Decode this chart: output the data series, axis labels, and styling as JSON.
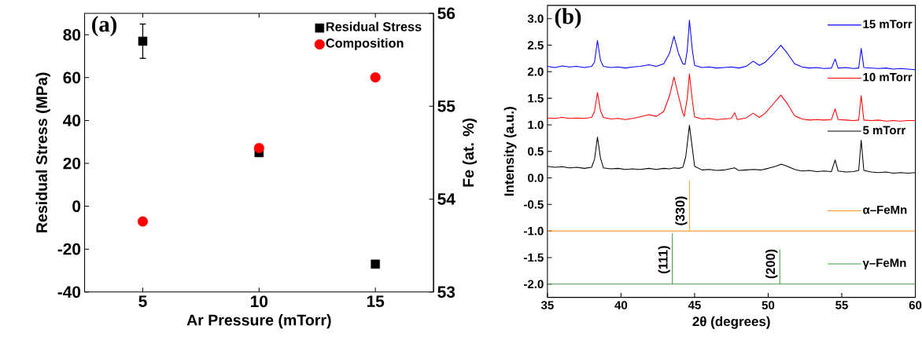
{
  "chart_data": [
    {
      "type": "scatter",
      "x": [
        5,
        10,
        15
      ],
      "xlim": [
        2.5,
        17.5
      ],
      "xticks": [
        5,
        10,
        15
      ],
      "ylim": [
        -40,
        90
      ],
      "yticks": [
        -40,
        -20,
        0,
        20,
        40,
        60,
        80
      ],
      "y2lim": [
        53,
        56
      ],
      "y2ticks": [
        53,
        54,
        55,
        56
      ],
      "xlabel": "Ar Pressure (mTorr)",
      "ylabel": "Residual Stress (MPa)",
      "y2label": "Fe (at. %)",
      "annotations": [
        "(a)"
      ],
      "legend": "top right",
      "series": [
        {
          "name": "Residual Stress",
          "color": "#000000",
          "marker": "square",
          "values": [
            77,
            25,
            -27
          ],
          "errors": [
            8,
            null,
            null
          ]
        },
        {
          "name": "Composition",
          "color": "#ff0000",
          "marker": "circle",
          "axis": "y2",
          "values": [
            53.76,
            54.55,
            55.31
          ]
        }
      ]
    },
    {
      "type": "line",
      "xlim": [
        35,
        60
      ],
      "xticks": [
        35,
        40,
        45,
        50,
        55,
        60
      ],
      "ylim": [
        -2.25,
        3.25
      ],
      "yticks": [
        {
          "value": -2,
          "label": "-2.0"
        },
        {
          "value": -1.5,
          "label": "-1.5"
        },
        {
          "value": -1,
          "label": "-1.0"
        },
        {
          "value": -0.5,
          "label": "-0.5"
        },
        {
          "value": 0,
          "label": "0.0"
        },
        {
          "value": 0.5,
          "label": "0.5"
        },
        {
          "value": 1,
          "label": "1.0"
        },
        {
          "value": 1.5,
          "label": "1.5"
        },
        {
          "value": 2,
          "label": "2.0"
        },
        {
          "value": 2.5,
          "label": "2.5"
        },
        {
          "value": 3,
          "label": "3.0"
        }
      ],
      "xlabel": "2θ (degrees)",
      "ylabel": "Intensity (a.u.)",
      "legend": "right",
      "annotations": [
        "(b)",
        {
          "text": "(330)",
          "x": 44.65,
          "y": -0.62
        },
        {
          "text": "(111)",
          "x": 43.49,
          "y": -1.54
        },
        {
          "text": "(200)",
          "x": 50.79,
          "y": -1.62
        }
      ],
      "series": [
        {
          "name": "15 mTorr",
          "color": "#0000ff",
          "x": [
            35,
            35.5,
            36,
            36.5,
            37,
            37.5,
            38,
            38.2,
            38.4,
            38.6,
            38.8,
            39.3,
            39.8,
            40.3,
            40.8,
            41.3,
            41.9,
            42.4,
            42.9,
            43.3,
            43.6,
            43.9,
            44.2,
            44.35,
            44.5,
            44.65,
            44.85,
            45,
            45.5,
            46,
            46.5,
            47,
            47.5,
            48,
            48.5,
            48.98,
            49.4,
            49.8,
            50.3,
            50.86,
            51.3,
            51.8,
            52.3,
            52.8,
            53.3,
            53.8,
            54.3,
            54.55,
            54.75,
            55.3,
            55.8,
            56.15,
            56.32,
            56.5,
            57,
            57.5,
            58,
            58.5,
            59,
            59.5,
            60
          ],
          "values": [
            2.1,
            2.08,
            2.11,
            2.09,
            2.1,
            2.08,
            2.1,
            2.18,
            2.59,
            2.22,
            2.1,
            2.08,
            2.09,
            2.07,
            2.09,
            2.1,
            2.13,
            2.1,
            2.15,
            2.35,
            2.67,
            2.35,
            2.15,
            2.14,
            2.4,
            2.97,
            2.4,
            2.12,
            2.08,
            2.09,
            2.07,
            2.08,
            2.09,
            2.07,
            2.1,
            2.2,
            2.12,
            2.18,
            2.32,
            2.5,
            2.35,
            2.15,
            2.09,
            2.07,
            2.08,
            2.06,
            2.07,
            2.24,
            2.07,
            2.08,
            2.06,
            2.07,
            2.44,
            2.08,
            2.07,
            2.06,
            2.07,
            2.05,
            2.06,
            2.05,
            2.04
          ]
        },
        {
          "name": "10 mTorr",
          "color": "#ff0000",
          "x": [
            35,
            35.5,
            36,
            36.5,
            37,
            37.5,
            38,
            38.2,
            38.4,
            38.6,
            38.8,
            39.3,
            39.8,
            40.3,
            40.8,
            41.3,
            41.9,
            42.4,
            42.9,
            43.3,
            43.6,
            43.9,
            44.2,
            44.3,
            44.5,
            44.65,
            44.85,
            45,
            45.5,
            46,
            46.5,
            47,
            47.5,
            47.72,
            47.9,
            48.5,
            48.98,
            49.4,
            49.8,
            50.3,
            50.86,
            51.3,
            51.8,
            52.3,
            52.8,
            53.3,
            53.8,
            54.3,
            54.55,
            54.75,
            55.3,
            55.8,
            56.15,
            56.32,
            56.5,
            57,
            57.5,
            58,
            58.5,
            59,
            59.5,
            60
          ],
          "values": [
            1.13,
            1.12,
            1.14,
            1.12,
            1.13,
            1.12,
            1.14,
            1.25,
            1.61,
            1.27,
            1.14,
            1.11,
            1.12,
            1.1,
            1.12,
            1.15,
            1.19,
            1.16,
            1.25,
            1.55,
            1.9,
            1.55,
            1.22,
            1.16,
            1.5,
            1.96,
            1.45,
            1.15,
            1.11,
            1.12,
            1.1,
            1.11,
            1.12,
            1.23,
            1.1,
            1.13,
            1.22,
            1.14,
            1.22,
            1.38,
            1.56,
            1.4,
            1.17,
            1.11,
            1.09,
            1.1,
            1.09,
            1.1,
            1.3,
            1.1,
            1.09,
            1.08,
            1.09,
            1.55,
            1.09,
            1.08,
            1.09,
            1.07,
            1.08,
            1.07,
            1.08,
            1.08
          ]
        },
        {
          "name": "5 mTorr",
          "color": "#000000",
          "x": [
            35,
            35.5,
            36,
            36.5,
            37,
            37.5,
            38,
            38.2,
            38.4,
            38.6,
            38.8,
            39.3,
            39.8,
            40.3,
            40.8,
            41.3,
            41.9,
            42.4,
            42.9,
            43.3,
            43.6,
            43.9,
            44.2,
            44.4,
            44.65,
            44.85,
            45,
            45.5,
            46,
            46.5,
            47,
            47.72,
            48,
            48.5,
            49,
            49.5,
            50,
            50.5,
            50.9,
            51.3,
            51.8,
            52.3,
            52.8,
            53.3,
            53.8,
            54.3,
            54.55,
            54.75,
            55.3,
            55.8,
            56.15,
            56.32,
            56.5,
            57,
            57.5,
            58,
            58.5,
            59,
            59.5,
            60
          ],
          "values": [
            0.22,
            0.2,
            0.21,
            0.19,
            0.2,
            0.18,
            0.2,
            0.35,
            0.77,
            0.38,
            0.19,
            0.17,
            0.18,
            0.16,
            0.17,
            0.16,
            0.18,
            0.16,
            0.18,
            0.17,
            0.19,
            0.18,
            0.2,
            0.4,
            0.99,
            0.55,
            0.22,
            0.15,
            0.16,
            0.14,
            0.15,
            0.19,
            0.14,
            0.15,
            0.16,
            0.15,
            0.18,
            0.22,
            0.26,
            0.22,
            0.16,
            0.13,
            0.14,
            0.12,
            0.13,
            0.12,
            0.34,
            0.13,
            0.11,
            0.12,
            0.14,
            0.71,
            0.14,
            0.11,
            0.1,
            0.11,
            0.09,
            0.1,
            0.09,
            0.1
          ]
        },
        {
          "name": "α–FeMn",
          "color": "#f7a040",
          "x": [
            35,
            44.65,
            44.65,
            44.65,
            60
          ],
          "values": [
            -1,
            -1,
            -0.05,
            -1,
            -1
          ]
        },
        {
          "name": "γ–FeMn",
          "color": "#3aa13a",
          "x": [
            35,
            43.49,
            43.49,
            43.49,
            50.79,
            50.79,
            50.79,
            60
          ],
          "values": [
            -2,
            -2,
            -1.05,
            -2,
            -2,
            -1.35,
            -2,
            -2
          ]
        }
      ]
    }
  ]
}
